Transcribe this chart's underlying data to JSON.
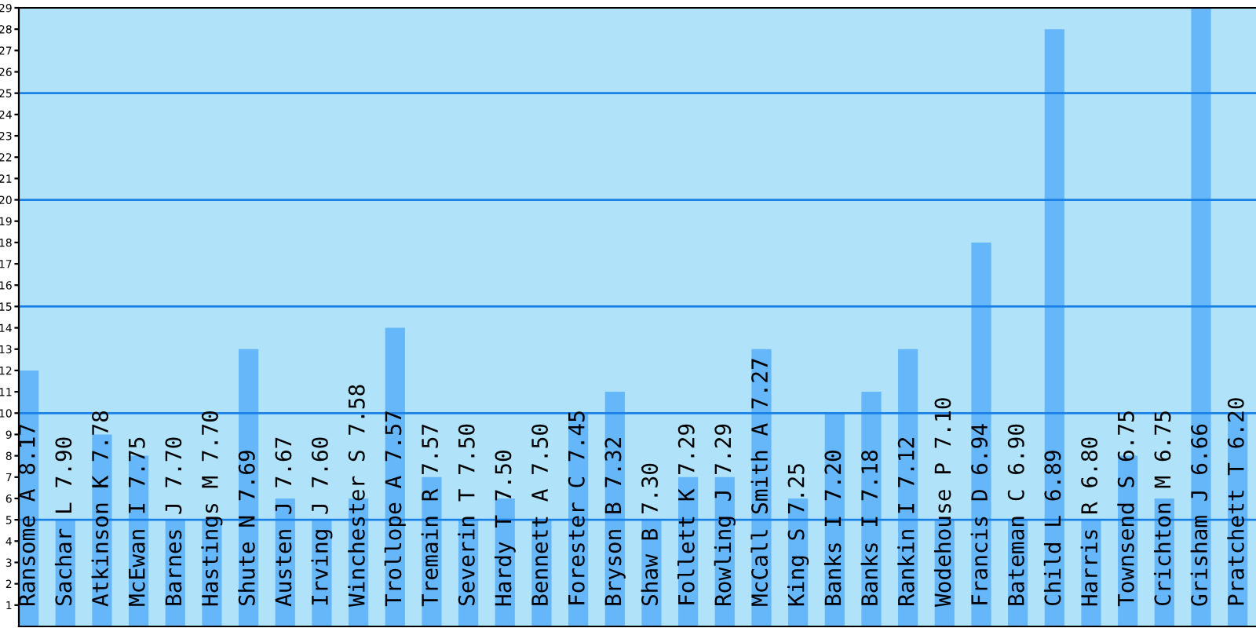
{
  "chart_data": {
    "type": "bar",
    "categories": [
      "Ransome A 8.17",
      "Sachar L 7.90",
      "Atkinson K 7.78",
      "McEwan I 7.75",
      "Barnes J 7.70",
      "Hastings M 7.70",
      "Shute N 7.69",
      "Austen J 7.67",
      "Irving J 7.60",
      "Winchester S 7.58",
      "Trollope A 7.57",
      "Tremain R 7.57",
      "Severin T 7.50",
      "Hardy T 7.50",
      "Bennett A 7.50",
      "Forester C 7.45",
      "Bryson B 7.32",
      "Shaw B 7.30",
      "Follett K 7.29",
      "Rowling J 7.29",
      "McCall Smith A 7.27",
      "King S 7.25",
      "Banks I 7.20",
      "Banks I 7.18",
      "Rankin I 7.12",
      "Wodehouse P 7.10",
      "Francis D 6.94",
      "Bateman C 6.90",
      "Child L 6.89",
      "Harris R 6.80",
      "Townsend S 6.75",
      "Crichton M 6.75",
      "Grisham J 6.66",
      "Pratchett T 6.20"
    ],
    "values": [
      12,
      5,
      9,
      8,
      5,
      5,
      13,
      6,
      5,
      6,
      14,
      7,
      5,
      6,
      5,
      10,
      11,
      5,
      7,
      7,
      13,
      6,
      10,
      11,
      13,
      5,
      18,
      5,
      28,
      5,
      8,
      6,
      29,
      10
    ],
    "color": "#66b6fa",
    "ylim": [
      0,
      29
    ],
    "yticks": [
      1,
      2,
      3,
      4,
      5,
      6,
      7,
      8,
      9,
      10,
      11,
      12,
      13,
      14,
      15,
      16,
      17,
      18,
      19,
      20,
      21,
      22,
      23,
      24,
      25,
      26,
      27,
      28,
      29
    ],
    "ref_lines": [
      {
        "axis": "y",
        "value": 5,
        "color": "#1a82e6"
      },
      {
        "axis": "y",
        "value": 10,
        "color": "#1a82e6"
      },
      {
        "axis": "y",
        "value": 15,
        "color": "#1a82e6"
      },
      {
        "axis": "y",
        "value": 20,
        "color": "#1a82e6"
      },
      {
        "axis": "y",
        "value": 25,
        "color": "#1a82e6"
      }
    ],
    "grid": false
  }
}
